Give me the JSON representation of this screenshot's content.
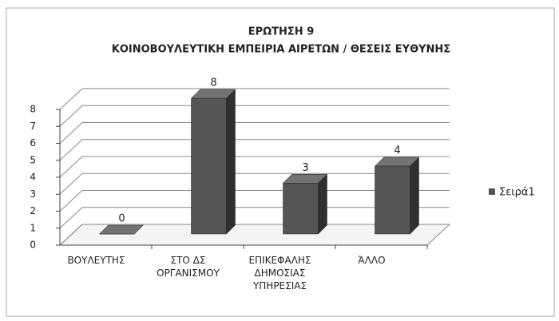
{
  "chart_data": {
    "type": "bar3d",
    "title": "ΕΡΩΤΗΣΗ 9",
    "subtitle": "ΚΟΙΝΟΒΟΥΛΕΥΤΙΚΗ ΕΜΠΕΙΡΙΑ ΑΙΡΕΤΩΝ / ΘΕΣΕΙΣ ΕΥΘΥΝΗΣ",
    "categories": [
      "ΒΟΥΛΕΥΤΗΣ",
      "ΣΤΟ ΔΣ ΟΡΓΑΝΙΣΜΟΥ",
      "ΕΠΙΚΕΦΑΛΗΣ ΔΗΜΟΣΙΑΣ ΥΠΗΡΕΣΙΑΣ",
      "ΆΛΛΟ"
    ],
    "series": [
      {
        "name": "Σειρά1",
        "color": "#555555",
        "values": [
          0,
          8,
          3,
          4
        ]
      }
    ],
    "ylim": [
      0,
      8
    ],
    "yticks": [
      0,
      1,
      2,
      3,
      4,
      5,
      6,
      7,
      8
    ],
    "grid": true,
    "legend": "right"
  }
}
